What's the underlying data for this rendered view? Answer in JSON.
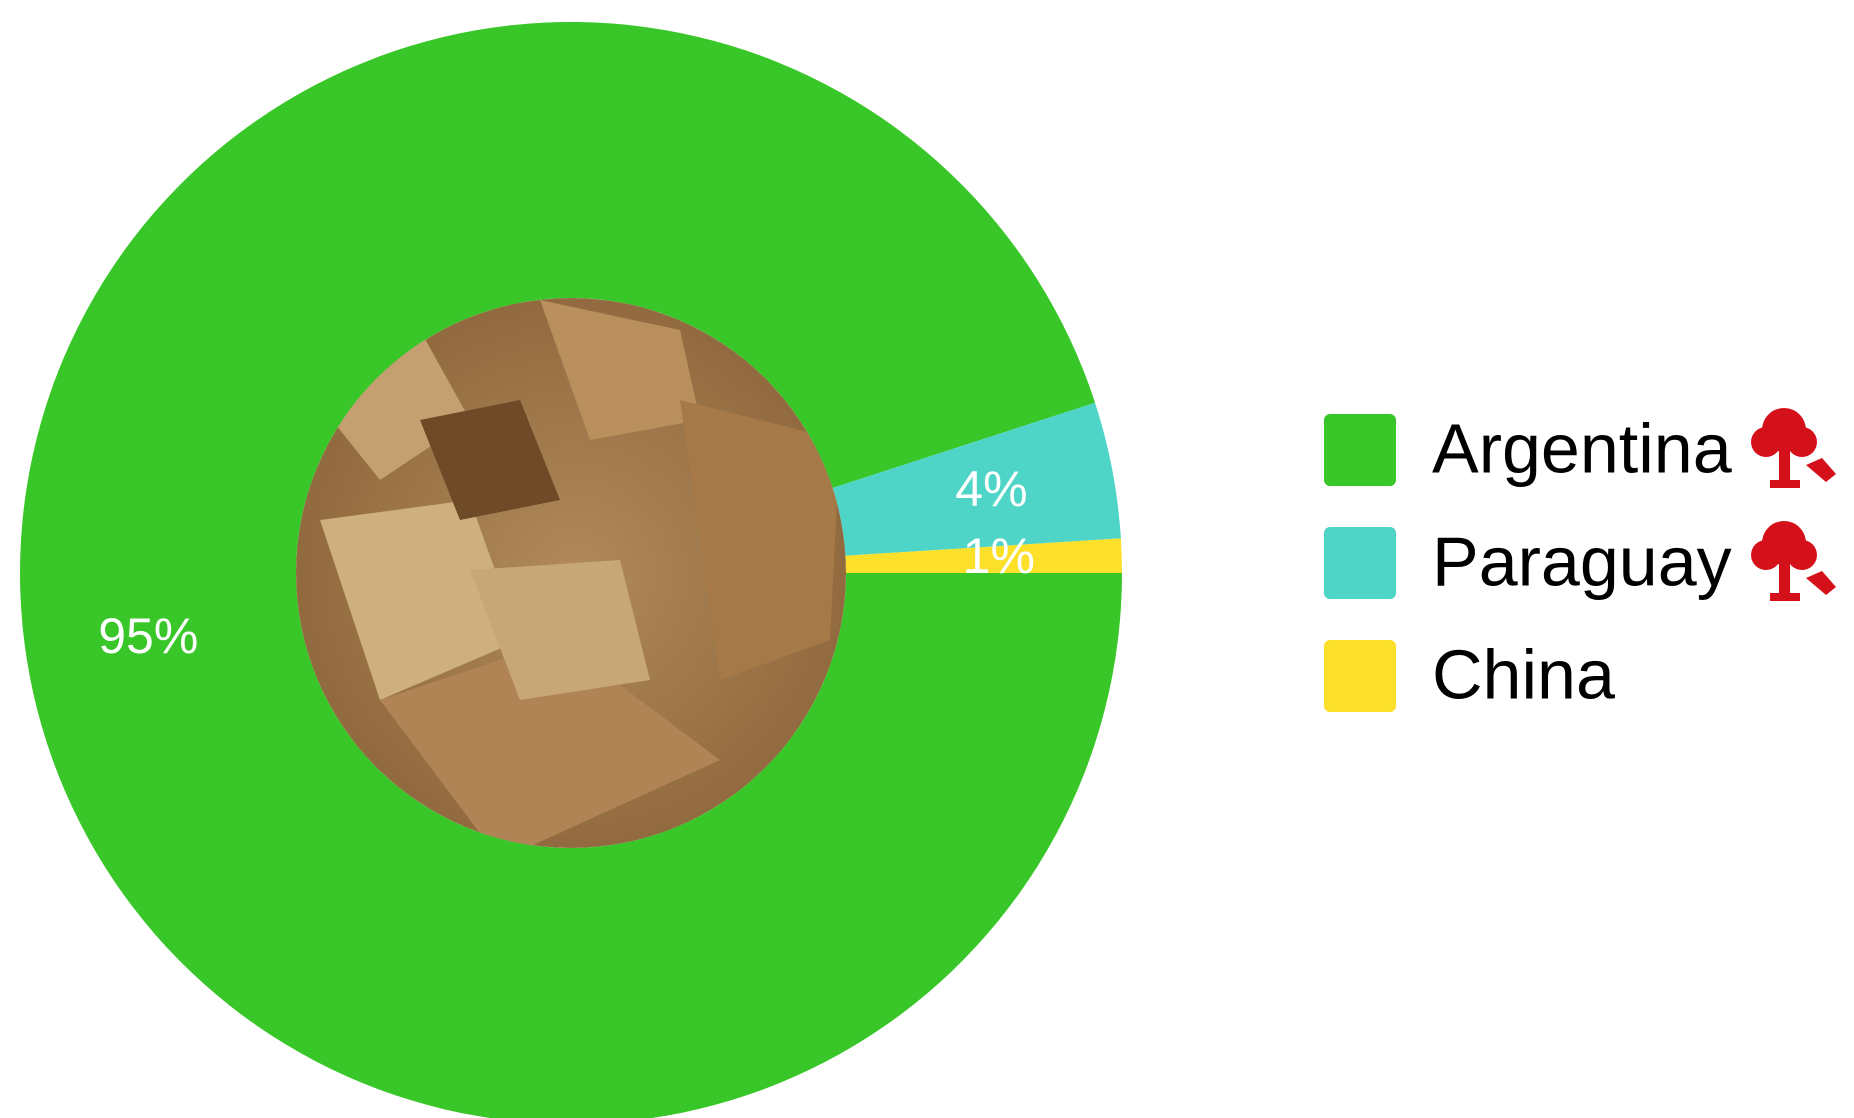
{
  "chart_data": {
    "type": "donut",
    "categories": [
      "Argentina",
      "Paraguay",
      "China"
    ],
    "values": [
      95,
      4,
      1
    ],
    "value_labels": [
      "95%",
      "4%",
      "1%"
    ],
    "colors": [
      "#38c628",
      "#4fd5c8",
      "#fde02a"
    ],
    "legend": "right"
  }
}
